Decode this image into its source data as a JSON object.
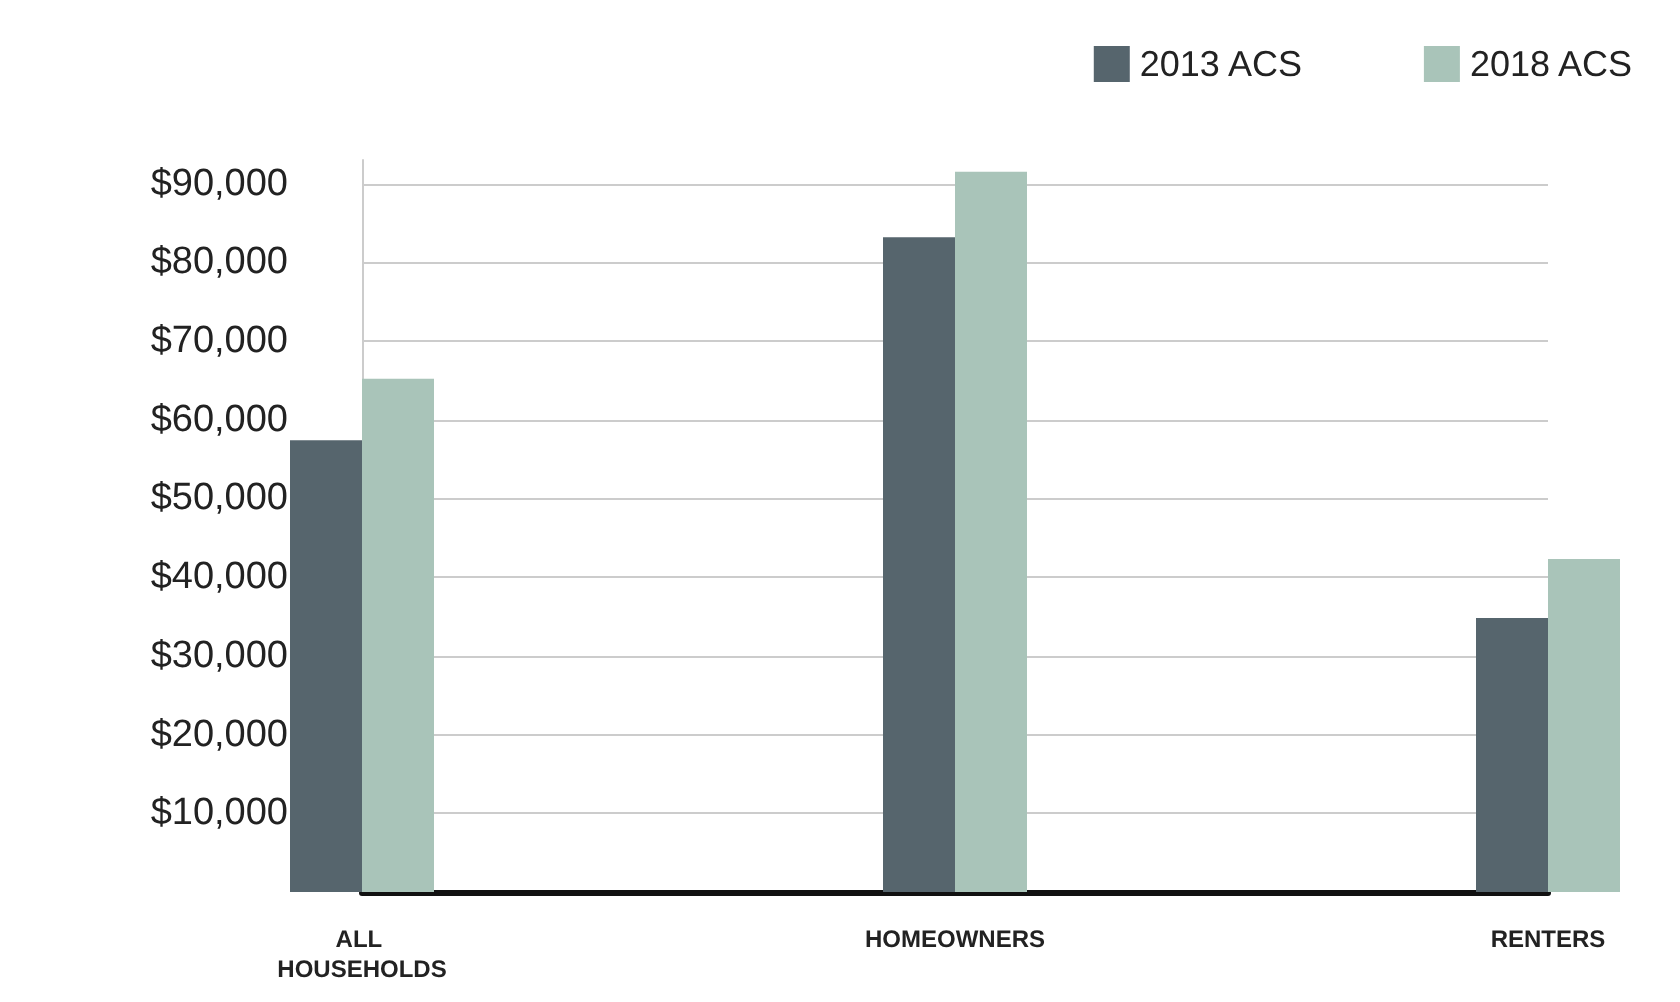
{
  "chart_data": {
    "type": "bar",
    "categories": [
      "ALL HOUSEHOLDS",
      "HOMEOWNERS",
      "RENTERS"
    ],
    "series": [
      {
        "name": "2013 ACS",
        "color": "#56656d",
        "values": [
          57400,
          83200,
          34800
        ]
      },
      {
        "name": "2018 ACS",
        "color": "#a9c4b9",
        "values": [
          65200,
          91500,
          42300
        ]
      }
    ],
    "ylim": [
      0,
      93000
    ],
    "yticks": [
      {
        "value": 0,
        "label": null
      },
      {
        "value": 10000,
        "label": "$10,000"
      },
      {
        "value": 20000,
        "label": "$20,000"
      },
      {
        "value": 30000,
        "label": "$30,000"
      },
      {
        "value": 40000,
        "label": "$40,000"
      },
      {
        "value": 50000,
        "label": "$50,000"
      },
      {
        "value": 60000,
        "label": "$60,000"
      },
      {
        "value": 70000,
        "label": "$70,000"
      },
      {
        "value": 80000,
        "label": "$80,000"
      },
      {
        "value": 90000,
        "label": "$90,000"
      }
    ],
    "grid": "y",
    "legend": "top right"
  }
}
